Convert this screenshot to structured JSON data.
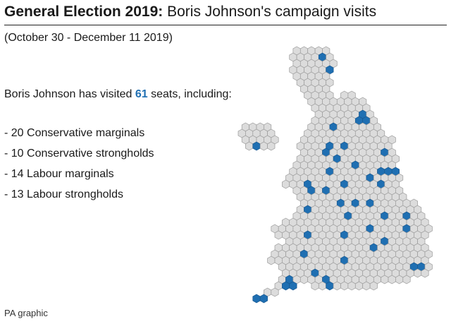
{
  "header": {
    "title_bold": "General Election 2019:",
    "title_rest": " Boris Johnson's campaign visits",
    "subtitle": "(October 30 - December 11 2019)"
  },
  "summary": {
    "lead_prefix": "Boris Johnson has visited ",
    "seat_count": "61",
    "lead_suffix": " seats, including:"
  },
  "breakdown": [
    "- 20 Conservative marginals",
    "- 10 Conservative strongholds",
    "- 14 Labour marginals",
    "- 13 Labour strongholds"
  ],
  "footer": {
    "credit": "PA graphic"
  },
  "colors": {
    "visited": "#1f6fb2",
    "not_visited": "#dcdcdc",
    "hex_border": "#9a9a9a",
    "count_highlight": "#1f6fb2"
  }
}
